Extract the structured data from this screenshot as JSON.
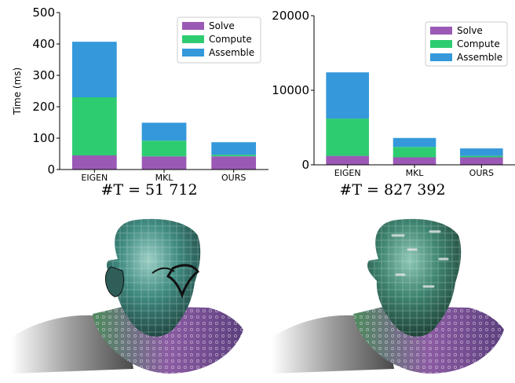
{
  "chart_data": [
    {
      "type": "bar",
      "stacked": true,
      "categories": [
        "EIGEN",
        "MKL",
        "OURS"
      ],
      "series": [
        {
          "name": "Solve",
          "color": "#9b59b6",
          "values": [
            45,
            42,
            42
          ]
        },
        {
          "name": "Compute",
          "color": "#2ecc71",
          "values": [
            185,
            50,
            5
          ]
        },
        {
          "name": "Assemble",
          "color": "#3498db",
          "values": [
            177,
            57,
            40
          ]
        }
      ],
      "ylabel": "Time (ms)",
      "ylim": [
        0,
        500
      ],
      "yticks": [
        0,
        100,
        200,
        300,
        400,
        500
      ],
      "caption": "#T = 51 712",
      "legend": "top-right",
      "grid": false
    },
    {
      "type": "bar",
      "stacked": true,
      "categories": [
        "EIGEN",
        "MKL",
        "OURS"
      ],
      "series": [
        {
          "name": "Solve",
          "color": "#9b59b6",
          "values": [
            1200,
            1000,
            1000
          ]
        },
        {
          "name": "Compute",
          "color": "#2ecc71",
          "values": [
            5000,
            1400,
            200
          ]
        },
        {
          "name": "Assemble",
          "color": "#3498db",
          "values": [
            6200,
            1200,
            1000
          ]
        }
      ],
      "ylabel": "",
      "ylim": [
        0,
        20000
      ],
      "yticks": [
        0,
        10000,
        20000
      ],
      "caption": "#T = 827 392",
      "legend": "top-right",
      "grid": false
    }
  ],
  "renders": [
    {
      "name": "head-render-low",
      "color_skin": "#3f7f78",
      "color_neck": "#8a5aa0"
    },
    {
      "name": "head-render-high",
      "color_skin": "#3f7f70",
      "color_neck": "#8a5aa0"
    }
  ]
}
